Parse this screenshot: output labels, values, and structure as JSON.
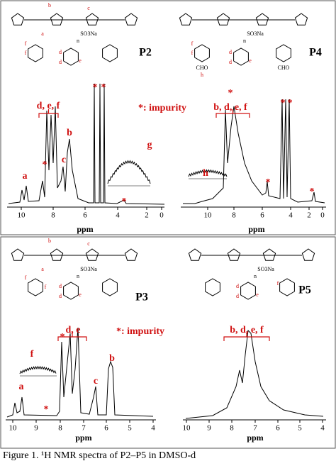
{
  "panels": [
    {
      "label": "P2",
      "structure_labels": [
        "b",
        "c",
        "a",
        "n",
        "SO3Na",
        "f",
        "f",
        "d",
        "d",
        "e"
      ],
      "peak_labels": [
        "a",
        "*",
        "d, e, f",
        "c",
        "b",
        "*",
        "*",
        "*: impurity",
        "g",
        "*"
      ],
      "axis": {
        "title": "ppm",
        "ticks": [
          "10",
          "8",
          "6",
          "4",
          "2",
          "0"
        ]
      }
    },
    {
      "label": "P4",
      "structure_labels": [
        "n",
        "SO3Na",
        "f",
        "f",
        "d",
        "d",
        "e",
        "CHO",
        "h",
        "CHO"
      ],
      "peak_labels": [
        "*",
        "b, d, e, f",
        "*",
        "*",
        "h",
        "*",
        "*"
      ],
      "axis": {
        "title": "ppm",
        "ticks": [
          "10",
          "8",
          "6",
          "4",
          "2",
          "0"
        ]
      }
    },
    {
      "label": "P3",
      "structure_labels": [
        "b",
        "c",
        "a",
        "n",
        "SO3Na",
        "f",
        "f",
        "d",
        "d",
        "e"
      ],
      "peak_labels": [
        "d, e",
        "*",
        "*: impurity",
        "f",
        "a",
        "c",
        "b",
        "*"
      ],
      "axis": {
        "title": "ppm",
        "ticks": [
          "10",
          "9",
          "8",
          "7",
          "6",
          "5",
          "4"
        ]
      }
    },
    {
      "label": "P5",
      "structure_labels": [
        "n",
        "SO3Na",
        "d",
        "d",
        "e",
        "f"
      ],
      "peak_labels": [
        "b, d, e, f"
      ],
      "axis": {
        "title": "ppm",
        "ticks": [
          "10",
          "9",
          "8",
          "7",
          "6",
          "5",
          "4"
        ]
      }
    }
  ],
  "caption": "Figure 1. ¹H NMR spectra of P2–P5 in DMSO-d"
}
